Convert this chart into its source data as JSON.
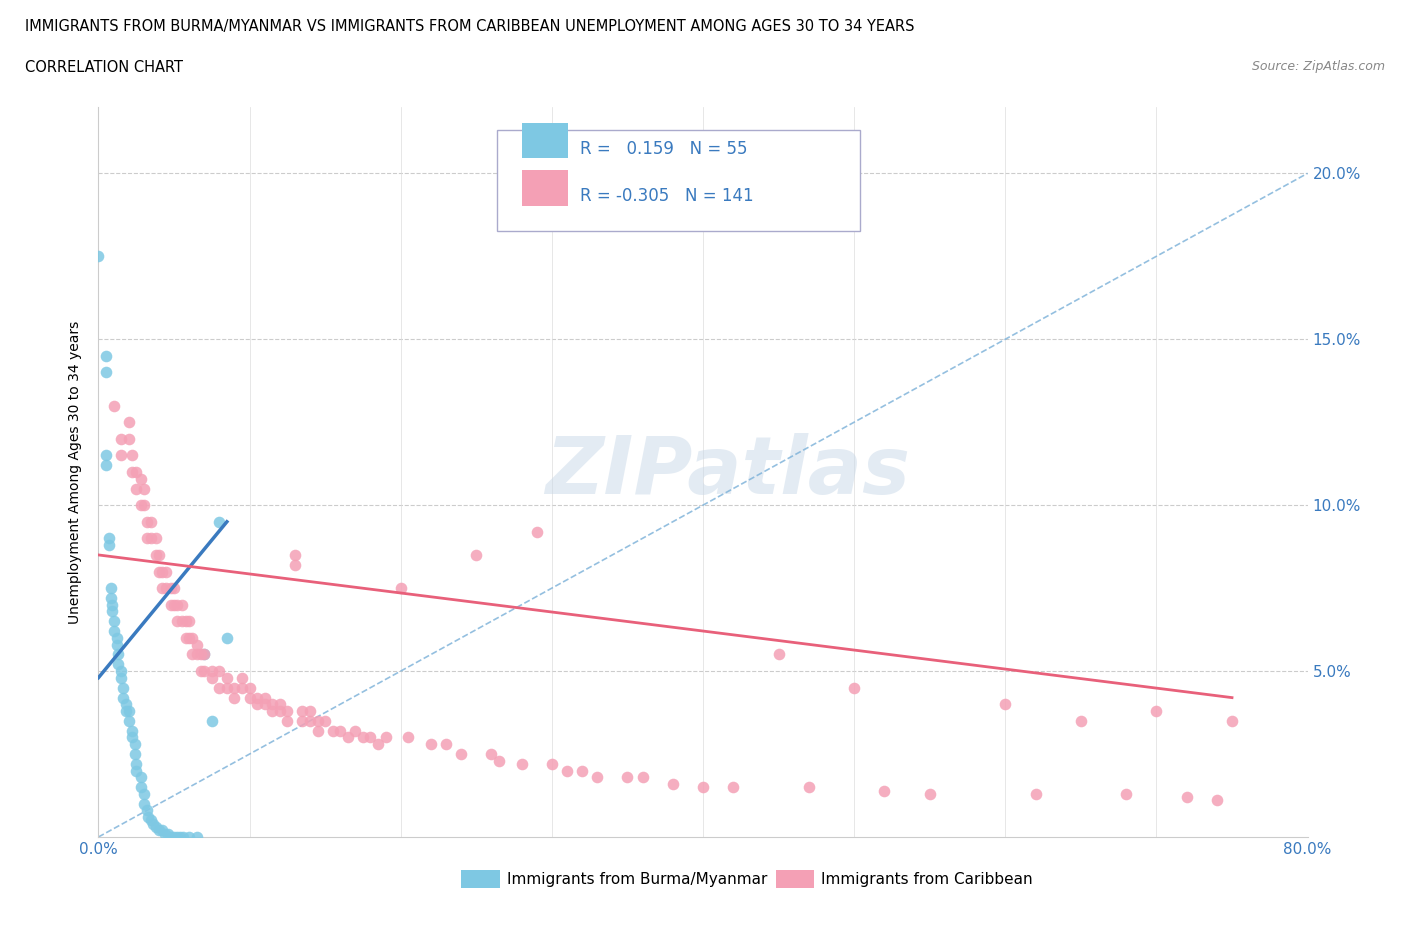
{
  "title_line1": "IMMIGRANTS FROM BURMA/MYANMAR VS IMMIGRANTS FROM CARIBBEAN UNEMPLOYMENT AMONG AGES 30 TO 34 YEARS",
  "title_line2": "CORRELATION CHART",
  "source_text": "Source: ZipAtlas.com",
  "ylabel": "Unemployment Among Ages 30 to 34 years",
  "xlim": [
    0.0,
    0.8
  ],
  "ylim": [
    0.0,
    0.22
  ],
  "x_ticks": [
    0.0,
    0.1,
    0.2,
    0.3,
    0.4,
    0.5,
    0.6,
    0.7,
    0.8
  ],
  "x_tick_labels": [
    "0.0%",
    "",
    "",
    "",
    "",
    "",
    "",
    "",
    "80.0%"
  ],
  "y_ticks": [
    0.0,
    0.05,
    0.1,
    0.15,
    0.2
  ],
  "y_tick_labels_right": [
    "",
    "5.0%",
    "10.0%",
    "15.0%",
    "20.0%"
  ],
  "color_burma": "#7ec8e3",
  "color_caribbean": "#f4a0b5",
  "color_burma_line": "#3a7abf",
  "color_caribbean_line": "#e8607a",
  "color_dashed": "#7ab0d8",
  "color_tick_label": "#3a7abf",
  "watermark_text": "ZIPatlas",
  "legend_box_color": "#f0f0f8",
  "burma_points": [
    [
      0.0,
      0.175
    ],
    [
      0.005,
      0.145
    ],
    [
      0.005,
      0.14
    ],
    [
      0.005,
      0.115
    ],
    [
      0.005,
      0.112
    ],
    [
      0.007,
      0.09
    ],
    [
      0.007,
      0.088
    ],
    [
      0.008,
      0.075
    ],
    [
      0.008,
      0.072
    ],
    [
      0.009,
      0.07
    ],
    [
      0.009,
      0.068
    ],
    [
      0.01,
      0.065
    ],
    [
      0.01,
      0.062
    ],
    [
      0.012,
      0.06
    ],
    [
      0.012,
      0.058
    ],
    [
      0.013,
      0.055
    ],
    [
      0.013,
      0.052
    ],
    [
      0.015,
      0.05
    ],
    [
      0.015,
      0.048
    ],
    [
      0.016,
      0.045
    ],
    [
      0.016,
      0.042
    ],
    [
      0.018,
      0.04
    ],
    [
      0.018,
      0.038
    ],
    [
      0.02,
      0.038
    ],
    [
      0.02,
      0.035
    ],
    [
      0.022,
      0.032
    ],
    [
      0.022,
      0.03
    ],
    [
      0.024,
      0.028
    ],
    [
      0.024,
      0.025
    ],
    [
      0.025,
      0.022
    ],
    [
      0.025,
      0.02
    ],
    [
      0.028,
      0.018
    ],
    [
      0.028,
      0.015
    ],
    [
      0.03,
      0.013
    ],
    [
      0.03,
      0.01
    ],
    [
      0.032,
      0.008
    ],
    [
      0.033,
      0.006
    ],
    [
      0.035,
      0.005
    ],
    [
      0.036,
      0.004
    ],
    [
      0.038,
      0.003
    ],
    [
      0.04,
      0.002
    ],
    [
      0.042,
      0.002
    ],
    [
      0.044,
      0.001
    ],
    [
      0.046,
      0.001
    ],
    [
      0.048,
      0.0
    ],
    [
      0.05,
      0.0
    ],
    [
      0.052,
      0.0
    ],
    [
      0.054,
      0.0
    ],
    [
      0.056,
      0.0
    ],
    [
      0.06,
      0.0
    ],
    [
      0.065,
      0.0
    ],
    [
      0.07,
      0.055
    ],
    [
      0.075,
      0.035
    ],
    [
      0.08,
      0.095
    ],
    [
      0.085,
      0.06
    ]
  ],
  "caribbean_points": [
    [
      0.01,
      0.13
    ],
    [
      0.015,
      0.12
    ],
    [
      0.015,
      0.115
    ],
    [
      0.02,
      0.125
    ],
    [
      0.02,
      0.12
    ],
    [
      0.022,
      0.115
    ],
    [
      0.022,
      0.11
    ],
    [
      0.025,
      0.11
    ],
    [
      0.025,
      0.105
    ],
    [
      0.028,
      0.108
    ],
    [
      0.028,
      0.1
    ],
    [
      0.03,
      0.105
    ],
    [
      0.03,
      0.1
    ],
    [
      0.032,
      0.095
    ],
    [
      0.032,
      0.09
    ],
    [
      0.035,
      0.095
    ],
    [
      0.035,
      0.09
    ],
    [
      0.038,
      0.09
    ],
    [
      0.038,
      0.085
    ],
    [
      0.04,
      0.085
    ],
    [
      0.04,
      0.08
    ],
    [
      0.042,
      0.08
    ],
    [
      0.042,
      0.075
    ],
    [
      0.045,
      0.08
    ],
    [
      0.045,
      0.075
    ],
    [
      0.048,
      0.075
    ],
    [
      0.048,
      0.07
    ],
    [
      0.05,
      0.075
    ],
    [
      0.05,
      0.07
    ],
    [
      0.052,
      0.07
    ],
    [
      0.052,
      0.065
    ],
    [
      0.055,
      0.07
    ],
    [
      0.055,
      0.065
    ],
    [
      0.058,
      0.065
    ],
    [
      0.058,
      0.06
    ],
    [
      0.06,
      0.065
    ],
    [
      0.06,
      0.06
    ],
    [
      0.062,
      0.06
    ],
    [
      0.062,
      0.055
    ],
    [
      0.065,
      0.058
    ],
    [
      0.065,
      0.055
    ],
    [
      0.068,
      0.055
    ],
    [
      0.068,
      0.05
    ],
    [
      0.07,
      0.055
    ],
    [
      0.07,
      0.05
    ],
    [
      0.075,
      0.05
    ],
    [
      0.075,
      0.048
    ],
    [
      0.08,
      0.05
    ],
    [
      0.08,
      0.045
    ],
    [
      0.085,
      0.048
    ],
    [
      0.085,
      0.045
    ],
    [
      0.09,
      0.045
    ],
    [
      0.09,
      0.042
    ],
    [
      0.095,
      0.048
    ],
    [
      0.095,
      0.045
    ],
    [
      0.1,
      0.045
    ],
    [
      0.1,
      0.042
    ],
    [
      0.105,
      0.042
    ],
    [
      0.105,
      0.04
    ],
    [
      0.11,
      0.042
    ],
    [
      0.11,
      0.04
    ],
    [
      0.115,
      0.04
    ],
    [
      0.115,
      0.038
    ],
    [
      0.12,
      0.04
    ],
    [
      0.12,
      0.038
    ],
    [
      0.125,
      0.038
    ],
    [
      0.125,
      0.035
    ],
    [
      0.13,
      0.085
    ],
    [
      0.13,
      0.082
    ],
    [
      0.135,
      0.038
    ],
    [
      0.135,
      0.035
    ],
    [
      0.14,
      0.038
    ],
    [
      0.14,
      0.035
    ],
    [
      0.145,
      0.035
    ],
    [
      0.145,
      0.032
    ],
    [
      0.15,
      0.035
    ],
    [
      0.155,
      0.032
    ],
    [
      0.16,
      0.032
    ],
    [
      0.165,
      0.03
    ],
    [
      0.17,
      0.032
    ],
    [
      0.175,
      0.03
    ],
    [
      0.18,
      0.03
    ],
    [
      0.185,
      0.028
    ],
    [
      0.19,
      0.03
    ],
    [
      0.2,
      0.075
    ],
    [
      0.205,
      0.03
    ],
    [
      0.22,
      0.028
    ],
    [
      0.23,
      0.028
    ],
    [
      0.24,
      0.025
    ],
    [
      0.25,
      0.085
    ],
    [
      0.26,
      0.025
    ],
    [
      0.265,
      0.023
    ],
    [
      0.28,
      0.022
    ],
    [
      0.29,
      0.092
    ],
    [
      0.3,
      0.022
    ],
    [
      0.31,
      0.02
    ],
    [
      0.32,
      0.02
    ],
    [
      0.33,
      0.018
    ],
    [
      0.35,
      0.018
    ],
    [
      0.36,
      0.018
    ],
    [
      0.38,
      0.016
    ],
    [
      0.4,
      0.015
    ],
    [
      0.42,
      0.015
    ],
    [
      0.45,
      0.055
    ],
    [
      0.47,
      0.015
    ],
    [
      0.5,
      0.045
    ],
    [
      0.52,
      0.014
    ],
    [
      0.55,
      0.013
    ],
    [
      0.6,
      0.04
    ],
    [
      0.62,
      0.013
    ],
    [
      0.65,
      0.035
    ],
    [
      0.68,
      0.013
    ],
    [
      0.7,
      0.038
    ],
    [
      0.72,
      0.012
    ],
    [
      0.74,
      0.011
    ],
    [
      0.75,
      0.035
    ]
  ],
  "carib_line_x": [
    0.0,
    0.75
  ],
  "carib_line_y": [
    0.085,
    0.042
  ],
  "burma_line_x": [
    0.0,
    0.085
  ],
  "burma_line_y": [
    0.048,
    0.095
  ],
  "dashed_line_x": [
    0.0,
    0.8
  ],
  "dashed_line_y": [
    0.0,
    0.2
  ]
}
